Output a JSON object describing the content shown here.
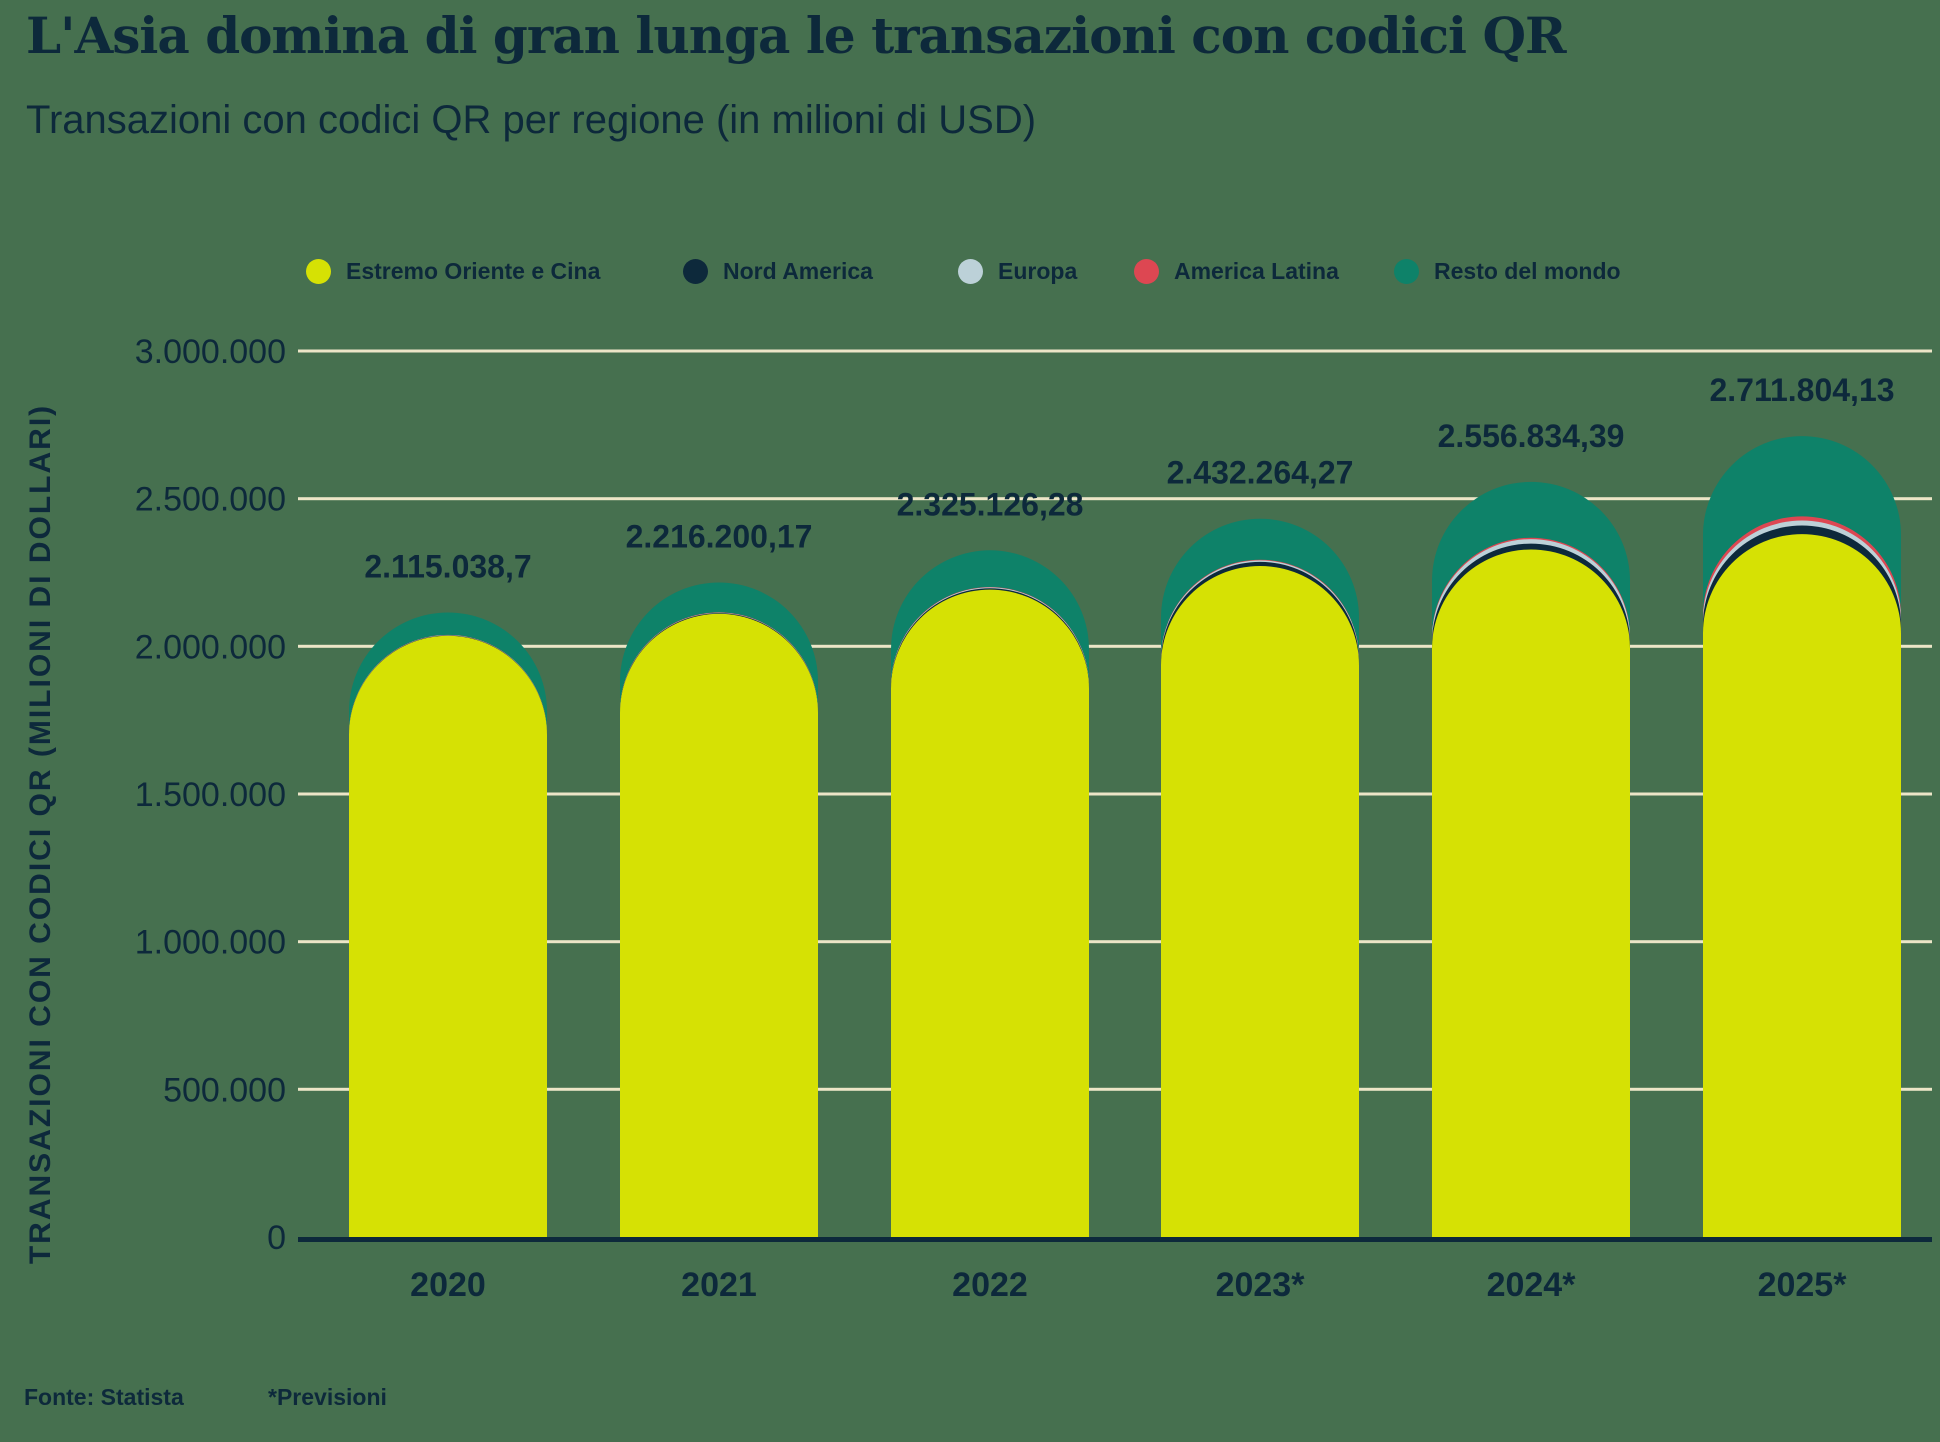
{
  "title": "L'Asia domina di gran lunga le transazioni con codici QR",
  "subtitle": "Transazioni con codici QR per regione (in milioni di USD)",
  "footer": {
    "source": "Fonte: Statista",
    "note": "*Previsioni"
  },
  "colors": {
    "background": "#46704F",
    "text": "#0D293B",
    "gridline": "#ECE5C7",
    "axis_line": "#0D293B",
    "far_east_china": "#D6E104",
    "north_america": "#0D293B",
    "europe": "#BCD1D8",
    "latin_america": "#DD4752",
    "rest_of_world": "#0E8269"
  },
  "chart_data": {
    "type": "bar",
    "stacked": true,
    "rounded_top": true,
    "title": "L'Asia domina di gran lunga le transazioni con codici QR",
    "subtitle": "Transazioni con codici QR per regione (in milioni di USD)",
    "categories": [
      "2020",
      "2021",
      "2022",
      "2023*",
      "2024*",
      "2025*"
    ],
    "series": [
      {
        "name": "Estremo Oriente e Cina",
        "color": "#D6E104",
        "values": [
          2036000,
          2110000,
          2192000,
          2272000,
          2328000,
          2380000
        ]
      },
      {
        "name": "Nord America",
        "color": "#0D293B",
        "values": [
          1500,
          2500,
          5000,
          14000,
          20000,
          29000
        ]
      },
      {
        "name": "Europa",
        "color": "#BCD1D8",
        "values": [
          1000,
          1500,
          2500,
          5000,
          15000,
          17000
        ]
      },
      {
        "name": "America Latina",
        "color": "#DD4752",
        "values": [
          500,
          1000,
          1500,
          2500,
          5000,
          14000
        ]
      },
      {
        "name": "Resto del mondo",
        "color": "#0E8269",
        "values": [
          76038.7,
          101200.17,
          124126.28,
          138764.27,
          188834.39,
          271804.13
        ]
      }
    ],
    "totals": [
      2115038.7,
      2216200.17,
      2325126.28,
      2432264.27,
      2556834.39,
      2711804.13
    ],
    "total_labels": [
      "2.115.038,7",
      "2.216.200,17",
      "2.325.126,28",
      "2.432.264,27",
      "2.556.834,39",
      "2.711.804,13"
    ],
    "ylabel": "TRANSAZIONI CON CODICI QR (MILIONI DI DOLLARI)",
    "xlabel": "",
    "ylim": [
      0,
      3000000
    ],
    "ytick_values": [
      0,
      500000,
      1000000,
      1500000,
      2000000,
      2500000,
      3000000
    ],
    "ytick_labels": [
      "0",
      "500.000",
      "1.000.000",
      "1.500.000",
      "2.000.000",
      "2.500.000",
      "3.000.000"
    ],
    "grid": true,
    "legend_position": "top"
  }
}
